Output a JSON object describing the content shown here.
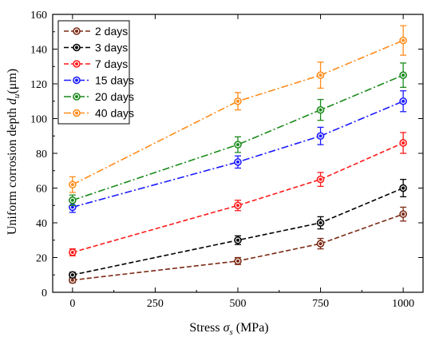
{
  "chart_data": {
    "type": "line",
    "xlabel_prefix": "Stress ",
    "xlabel_symbol": "σ",
    "xlabel_sub": "s",
    "xlabel_suffix": " (MPa)",
    "ylabel_prefix": "Uniform corrosion depth ",
    "ylabel_symbol": "d",
    "ylabel_sub": "u",
    "ylabel_suffix": "(μm)",
    "xlim": [
      -60,
      1060
    ],
    "ylim": [
      0,
      160
    ],
    "xticks": [
      0,
      250,
      500,
      750,
      1000
    ],
    "yticks": [
      0,
      20,
      40,
      60,
      80,
      100,
      120,
      140,
      160
    ],
    "x": [
      0,
      500,
      750,
      1000
    ],
    "grid": false,
    "legend_position": "top-left",
    "series": [
      {
        "name": "2 days",
        "color": "#7b2a14",
        "dash": "dash",
        "values": [
          7,
          18,
          28,
          45
        ],
        "errors": [
          1.5,
          2,
          3,
          4
        ]
      },
      {
        "name": "3 days",
        "color": "#000000",
        "dash": "dash",
        "values": [
          10,
          30,
          40,
          60
        ],
        "errors": [
          1.5,
          2.5,
          3.5,
          5
        ]
      },
      {
        "name": "7 days",
        "color": "#ff1a1a",
        "dash": "dash",
        "values": [
          23,
          50,
          65,
          86
        ],
        "errors": [
          2,
          3,
          4,
          6
        ]
      },
      {
        "name": "15 days",
        "color": "#1a1aff",
        "dash": "dashdot",
        "values": [
          49,
          75,
          90,
          110
        ],
        "errors": [
          3,
          3.5,
          5,
          6
        ]
      },
      {
        "name": "20 days",
        "color": "#1a8a1a",
        "dash": "dashdot",
        "values": [
          53,
          85,
          105,
          125
        ],
        "errors": [
          3,
          4.5,
          6,
          7
        ]
      },
      {
        "name": "40 days",
        "color": "#ff8c1a",
        "dash": "dashdot",
        "values": [
          62,
          110,
          125,
          145
        ],
        "errors": [
          4.5,
          5,
          7.5,
          8.5
        ]
      }
    ]
  }
}
